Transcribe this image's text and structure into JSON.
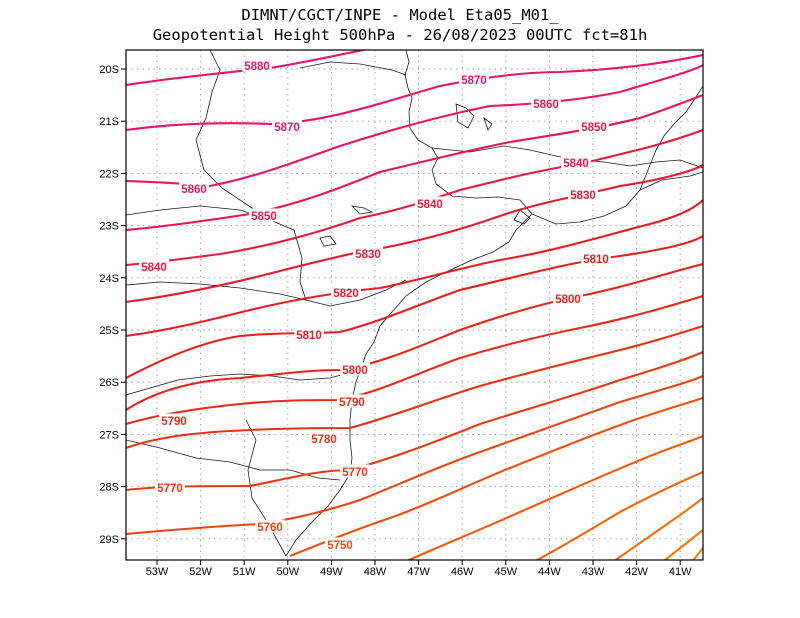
{
  "title": {
    "line1": "DIMNT/CGCT/INPE -  Model Eta05_M01_",
    "line2": "Geopotential Height 500hPa -  26/08/2023 00UTC fct=81h"
  },
  "map": {
    "lat_labels": [
      "20S",
      "21S",
      "22S",
      "23S",
      "24S",
      "25S",
      "26S",
      "27S",
      "28S",
      "29S"
    ],
    "lon_labels": [
      "53W",
      "52W",
      "51W",
      "50W",
      "49W",
      "48W",
      "47W",
      "46W",
      "45W",
      "44W",
      "43W",
      "42W",
      "41W"
    ],
    "contour_colors": {
      "5880": "#e8156e",
      "5870": "#e8156e",
      "5860": "#e8175c",
      "5850": "#e8174e",
      "5840": "#e81a3c",
      "5830": "#e81a2e",
      "5820": "#e81c22",
      "5810": "#e81e1e",
      "5800": "#e82418",
      "5790": "#e82a16",
      "5780": "#e83014",
      "5770": "#e83812",
      "5760": "#ec4410",
      "5750": "#ee4e0e",
      "5740": "#f05a0c",
      "5730": "#f2640a",
      "5720": "#f46e0a",
      "5710": "#f67808",
      "5700": "#f88206"
    },
    "contour_labels": [
      {
        "text": "5880"
      },
      {
        "text": "5870"
      },
      {
        "text": "5870"
      },
      {
        "text": "5860"
      },
      {
        "text": "5850"
      },
      {
        "text": "5860"
      },
      {
        "text": "5840"
      },
      {
        "text": "5850"
      },
      {
        "text": "5840"
      },
      {
        "text": "5830"
      },
      {
        "text": "5840"
      },
      {
        "text": "5830"
      },
      {
        "text": "5810"
      },
      {
        "text": "5820"
      },
      {
        "text": "5800"
      },
      {
        "text": "5810"
      },
      {
        "text": "5800"
      },
      {
        "text": "5790"
      },
      {
        "text": "5790"
      },
      {
        "text": "5780"
      },
      {
        "text": "5770"
      },
      {
        "text": "5770"
      },
      {
        "text": "5760"
      },
      {
        "text": "5750"
      }
    ]
  }
}
